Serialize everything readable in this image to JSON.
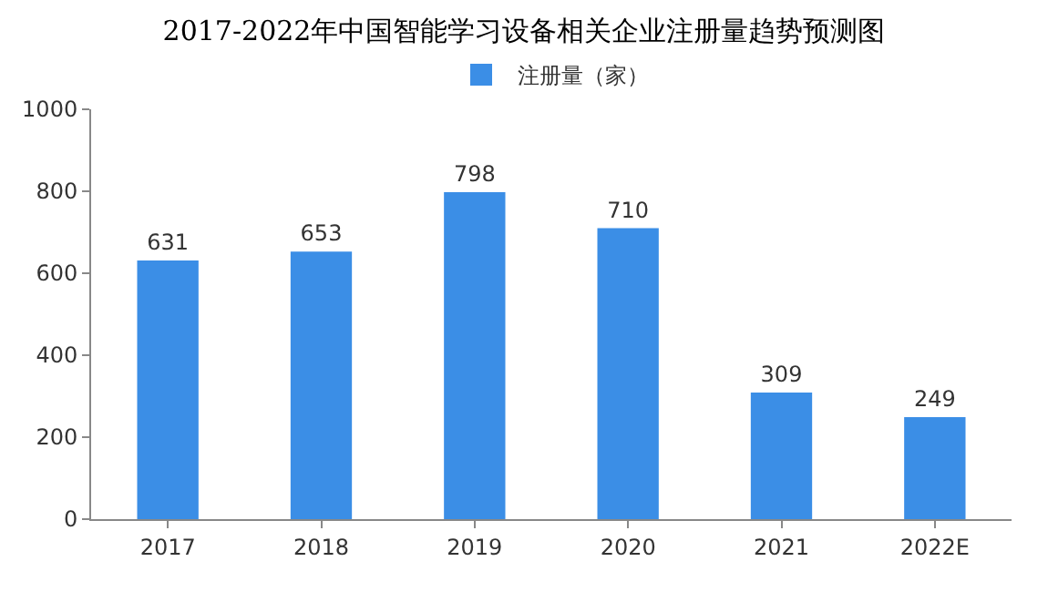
{
  "chart_data": {
    "type": "bar",
    "title": "2017-2022年中国智能学习设备相关企业注册量趋势预测图",
    "categories": [
      "2017",
      "2018",
      "2019",
      "2020",
      "2021",
      "2022E"
    ],
    "series": [
      {
        "name": "注册量（家）",
        "color": "#3b8ee6",
        "values": [
          631,
          653,
          798,
          710,
          309,
          249
        ]
      }
    ],
    "ylim": [
      0,
      1000
    ],
    "yticks": [
      0,
      200,
      400,
      600,
      800,
      1000
    ],
    "grid": false,
    "legend": "top",
    "data_labels": true
  }
}
